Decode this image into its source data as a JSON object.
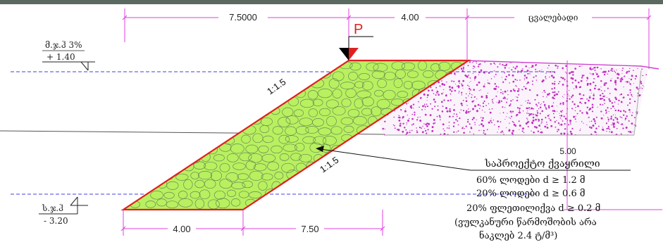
{
  "dimensions": {
    "top_left": "7.5000",
    "top_mid": "4.00",
    "top_right": "ცვალებადი",
    "bottom_left": "4.00",
    "bottom_right": "7.50",
    "height": "5.00"
  },
  "load_label": "P",
  "slopes": {
    "upper": "1:1.5",
    "lower": "1:1.5"
  },
  "levels": {
    "high_label": "მ.ჯ.ჰ 3%",
    "high_value": "+ 1.40",
    "low_label": "ს.ჯ.ჰ",
    "low_value": "- 3.20"
  },
  "legend": {
    "title": "საპროექტო ქვაყრილი",
    "line1": "60%  ლოდები  d ≥ 1.2  მ",
    "line2": "20%  ლოდები  d ≥ 0.6  მ",
    "line3": "20%  ფლეთილიქვა  d ≥ 0.2  მ",
    "line4": "(ვულკანური წარმოშობის არა",
    "line5": "ნაკლებ 2.4 ტ/მ³)"
  },
  "colors": {
    "fill": "#b8f060",
    "outline": "#e02020",
    "dimension": "#e040e0",
    "waterline": "#4040e0",
    "soil_dots": "#c030c0"
  }
}
